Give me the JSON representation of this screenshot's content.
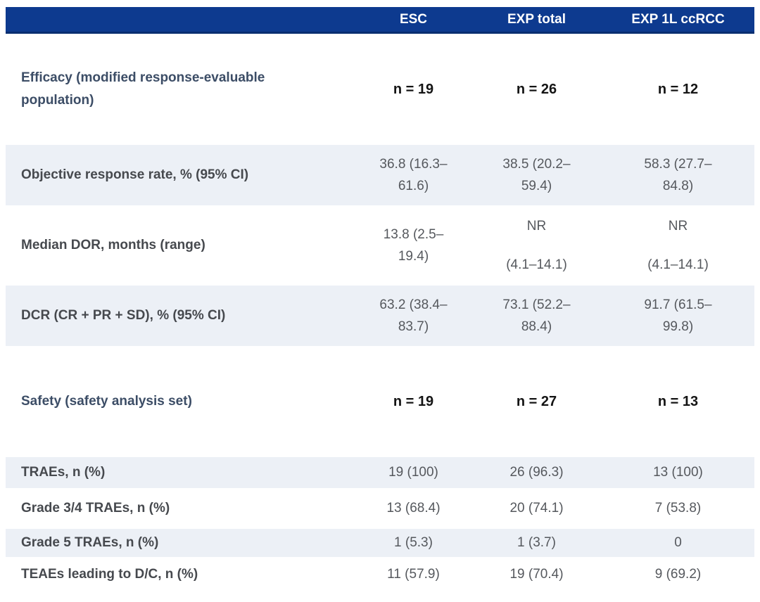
{
  "colors": {
    "header_bg": "#0d3a8f",
    "header_border": "#092e70",
    "header_text": "#ffffff",
    "alt_row_bg": "#ecf0f6",
    "section_text": "#3c4d66",
    "label_text": "#46494e",
    "value_text": "#55585d",
    "n_value_text": "#141414"
  },
  "table": {
    "columns": [
      "ESC",
      "EXP total",
      "EXP 1L ccRCC"
    ],
    "efficacy_section": {
      "label": "Efficacy (modified response-evaluable population)",
      "n": {
        "esc": "n = 19",
        "exp_total": "n = 26",
        "exp_1l": "n = 12"
      }
    },
    "rows_efficacy": [
      {
        "label": "Objective response rate, % (95% CI)",
        "esc": "36.8 (16.3–61.6)",
        "exp_total": "38.5 (20.2–59.4)",
        "exp_1l": "58.3 (27.7–84.8)"
      },
      {
        "label": "Median DOR, months (range)",
        "esc": "13.8 (2.5–19.4)",
        "exp_total": {
          "line1": "NR",
          "line2": "(4.1–14.1)"
        },
        "exp_1l": {
          "line1": "NR",
          "line2": "(4.1–14.1)"
        }
      },
      {
        "label": "DCR (CR + PR + SD), % (95% CI)",
        "esc": "63.2 (38.4–83.7)",
        "exp_total": "73.1 (52.2–88.4)",
        "exp_1l": "91.7 (61.5–99.8)"
      }
    ],
    "safety_section": {
      "label": "Safety (safety analysis set)",
      "n": {
        "esc": "n = 19",
        "exp_total": "n = 27",
        "exp_1l": "n = 13"
      }
    },
    "rows_safety": [
      {
        "label": "TRAEs, n (%)",
        "esc": "19 (100)",
        "exp_total": "26 (96.3)",
        "exp_1l": "13 (100)"
      },
      {
        "label": "Grade 3/4 TRAEs, n (%)",
        "esc": "13 (68.4)",
        "exp_total": "20 (74.1)",
        "exp_1l": "7 (53.8)"
      },
      {
        "label": "Grade 5 TRAEs, n (%)",
        "esc": "1 (5.3)",
        "exp_total": "1 (3.7)",
        "exp_1l": "0"
      },
      {
        "label": "TEAEs leading to D/C, n (%)",
        "esc": "11 (57.9)",
        "exp_total": "19 (70.4)",
        "exp_1l": "9 (69.2)"
      }
    ]
  }
}
